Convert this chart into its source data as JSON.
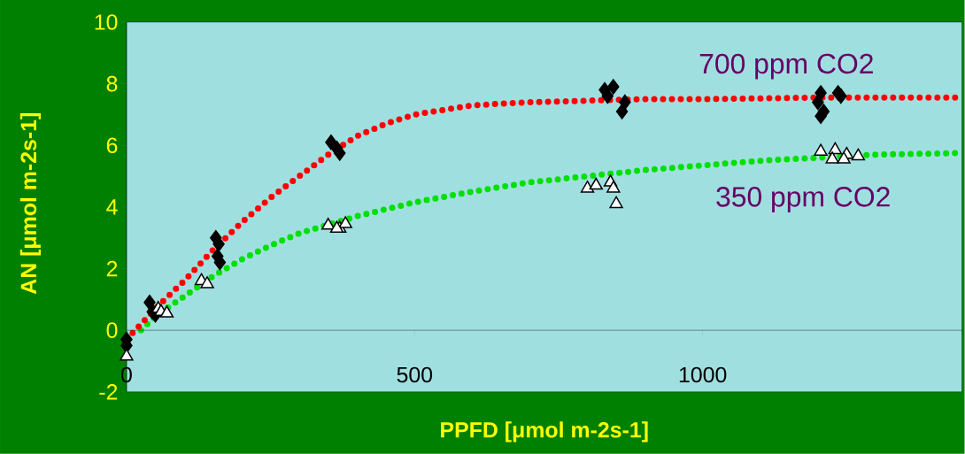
{
  "chart_data": {
    "type": "scatter",
    "xlabel": "PPFD [μmol m-2s-1]",
    "ylabel": "AN [μmol m-2s-1]",
    "xlim": [
      0,
      1450
    ],
    "ylim": [
      -2,
      10
    ],
    "xticks": [
      0,
      500,
      1000
    ],
    "yticks": [
      -2,
      0,
      2,
      4,
      6,
      8,
      10
    ],
    "series": [
      {
        "type": "line",
        "color": "#00e000",
        "marker": "none",
        "line_style": "dotted",
        "x": [
          25,
          50,
          100,
          150,
          200,
          250,
          300,
          400,
          500,
          600,
          700,
          800,
          900,
          1000,
          1100,
          1200,
          1300,
          1450
        ],
        "values": [
          0.0,
          0.45,
          1.1,
          1.75,
          2.3,
          2.75,
          3.15,
          3.7,
          4.15,
          4.5,
          4.8,
          5.0,
          5.2,
          5.35,
          5.5,
          5.6,
          5.7,
          5.75
        ]
      },
      {
        "color": "#000000",
        "marker": "diamond",
        "x": [
          0,
          0,
          40,
          45,
          50,
          155,
          160,
          158,
          162,
          355,
          365,
          370,
          830,
          845,
          835,
          865,
          860,
          1205,
          1240,
          1200,
          1210,
          1205,
          1235
        ],
        "values": [
          -0.3,
          -0.5,
          0.9,
          0.6,
          0.5,
          3.0,
          2.8,
          2.4,
          2.2,
          6.1,
          5.9,
          5.75,
          7.8,
          7.9,
          7.6,
          7.4,
          7.1,
          7.7,
          7.6,
          7.4,
          7.1,
          6.95,
          7.7
        ]
      },
      {
        "color": "#ffffff",
        "marker": "triangle",
        "x": [
          0,
          55,
          60,
          70,
          130,
          140,
          350,
          370,
          380,
          365,
          800,
          815,
          840,
          845,
          850,
          1205,
          1230,
          1250,
          1270,
          1225,
          1245
        ],
        "values": [
          -0.85,
          0.7,
          0.6,
          0.55,
          1.6,
          1.5,
          3.4,
          3.3,
          3.45,
          3.3,
          4.6,
          4.7,
          4.8,
          4.6,
          4.1,
          5.8,
          5.85,
          5.7,
          5.65,
          5.55,
          5.55
        ]
      },
      {
        "type": "line",
        "color": "#ff0000",
        "marker": "none",
        "line_style": "dotted",
        "x": [
          0,
          25,
          50,
          100,
          150,
          200,
          250,
          300,
          350,
          400,
          450,
          500,
          600,
          700,
          800,
          900,
          1000,
          1200,
          1450
        ],
        "values": [
          -0.3,
          0.2,
          0.7,
          1.6,
          2.6,
          3.5,
          4.3,
          5.0,
          5.7,
          6.3,
          6.7,
          7.0,
          7.3,
          7.4,
          7.45,
          7.5,
          7.5,
          7.55,
          7.55
        ]
      }
    ],
    "annotations": [
      "700 ppm CO2",
      "350 ppm CO2"
    ]
  }
}
